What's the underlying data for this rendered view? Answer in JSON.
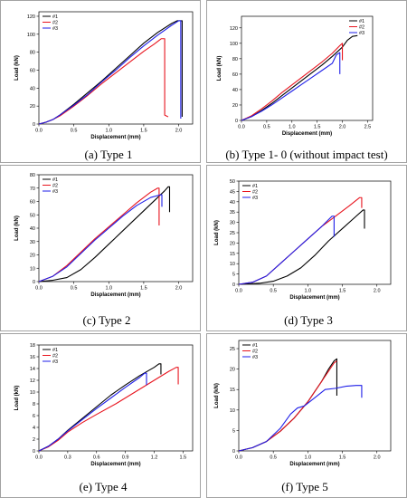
{
  "legend_labels": [
    "#1",
    "#2",
    "#3"
  ],
  "series_colors": {
    "#1": "#000000",
    "#2": "#e8141e",
    "#3": "#1e1ee8"
  },
  "chart_data": [
    {
      "type": "line",
      "caption": "(a) Type 1",
      "xlabel": "Displacement (mm)",
      "ylabel": "Load (kN)",
      "xlim": [
        0,
        2.2
      ],
      "ylim": [
        0,
        125
      ],
      "xticks": [
        0.0,
        0.5,
        1.0,
        1.5,
        2.0
      ],
      "yticks": [
        0,
        20,
        40,
        60,
        80,
        100,
        120
      ],
      "xdecimals": 1,
      "ydecimals": 0,
      "legend": "top-left",
      "series": [
        {
          "name": "#1",
          "points": [
            [
              0,
              0
            ],
            [
              0.1,
              2
            ],
            [
              0.2,
              5
            ],
            [
              0.3,
              10
            ],
            [
              0.5,
              22
            ],
            [
              0.7,
              35
            ],
            [
              0.9,
              48
            ],
            [
              1.1,
              62
            ],
            [
              1.3,
              76
            ],
            [
              1.5,
              90
            ],
            [
              1.7,
              102
            ],
            [
              1.9,
              112
            ],
            [
              1.98,
              115
            ],
            [
              2.05,
              115
            ],
            [
              2.05,
              8
            ]
          ]
        },
        {
          "name": "#2",
          "points": [
            [
              0,
              0
            ],
            [
              0.1,
              2
            ],
            [
              0.2,
              5
            ],
            [
              0.3,
              9
            ],
            [
              0.5,
              20
            ],
            [
              0.7,
              32
            ],
            [
              0.9,
              45
            ],
            [
              1.1,
              57
            ],
            [
              1.3,
              69
            ],
            [
              1.5,
              81
            ],
            [
              1.65,
              89
            ],
            [
              1.75,
              95
            ],
            [
              1.8,
              95
            ],
            [
              1.8,
              10
            ],
            [
              1.85,
              8
            ]
          ]
        },
        {
          "name": "#3",
          "points": [
            [
              0,
              0
            ],
            [
              0.1,
              2
            ],
            [
              0.2,
              5
            ],
            [
              0.3,
              10
            ],
            [
              0.5,
              21
            ],
            [
              0.7,
              33
            ],
            [
              0.9,
              47
            ],
            [
              1.1,
              60
            ],
            [
              1.3,
              74
            ],
            [
              1.5,
              87
            ],
            [
              1.7,
              99
            ],
            [
              1.9,
              110
            ],
            [
              2.0,
              115
            ],
            [
              2.03,
              115
            ],
            [
              2.03,
              6
            ]
          ]
        }
      ]
    },
    {
      "type": "line",
      "caption": "(b) Type 1- 0 (without impact test)",
      "xlabel": "Displacement (mm)",
      "ylabel": "Load (kN)",
      "xlim": [
        0,
        2.6
      ],
      "ylim": [
        0,
        135
      ],
      "xticks": [
        0.0,
        0.5,
        1.0,
        1.5,
        2.0,
        2.5
      ],
      "yticks": [
        0,
        20,
        40,
        60,
        80,
        100,
        120
      ],
      "xdecimals": 1,
      "ydecimals": 0,
      "legend": "top-right",
      "series": [
        {
          "name": "#1",
          "points": [
            [
              0,
              0
            ],
            [
              0.2,
              5
            ],
            [
              0.4,
              13
            ],
            [
              0.6,
              22
            ],
            [
              0.8,
              32
            ],
            [
              1.0,
              42
            ],
            [
              1.2,
              52
            ],
            [
              1.4,
              62
            ],
            [
              1.6,
              72
            ],
            [
              1.8,
              83
            ],
            [
              2.0,
              95
            ],
            [
              2.1,
              104
            ],
            [
              2.2,
              109
            ],
            [
              2.3,
              110
            ]
          ]
        },
        {
          "name": "#2",
          "points": [
            [
              0,
              0
            ],
            [
              0.2,
              6
            ],
            [
              0.4,
              15
            ],
            [
              0.6,
              25
            ],
            [
              0.8,
              36
            ],
            [
              1.0,
              46
            ],
            [
              1.2,
              56
            ],
            [
              1.4,
              66
            ],
            [
              1.6,
              76
            ],
            [
              1.8,
              87
            ],
            [
              1.95,
              97
            ],
            [
              2.0,
              100
            ],
            [
              2.0,
              78
            ]
          ]
        },
        {
          "name": "#3",
          "points": [
            [
              0,
              0
            ],
            [
              0.2,
              5
            ],
            [
              0.4,
              12
            ],
            [
              0.6,
              20
            ],
            [
              0.8,
              29
            ],
            [
              1.0,
              38
            ],
            [
              1.2,
              47
            ],
            [
              1.4,
              56
            ],
            [
              1.6,
              65
            ],
            [
              1.8,
              74
            ],
            [
              1.88,
              85
            ],
            [
              1.95,
              88
            ],
            [
              1.95,
              60
            ]
          ]
        }
      ]
    },
    {
      "type": "line",
      "caption": "(c) Type 2",
      "xlabel": "Displacement (mm)",
      "ylabel": "Load (kN)",
      "xlim": [
        0,
        2.2
      ],
      "ylim": [
        0,
        80
      ],
      "xticks": [
        0.0,
        0.5,
        1.0,
        1.5,
        2.0
      ],
      "yticks": [
        0,
        10,
        20,
        30,
        40,
        50,
        60,
        70,
        80
      ],
      "xdecimals": 1,
      "ydecimals": 0,
      "legend": "top-left",
      "series": [
        {
          "name": "#1",
          "points": [
            [
              0,
              0
            ],
            [
              0.2,
              1
            ],
            [
              0.4,
              3
            ],
            [
              0.6,
              9
            ],
            [
              0.8,
              18
            ],
            [
              1.0,
              28
            ],
            [
              1.2,
              38
            ],
            [
              1.4,
              48
            ],
            [
              1.6,
              58
            ],
            [
              1.8,
              68
            ],
            [
              1.85,
              71
            ],
            [
              1.87,
              71
            ],
            [
              1.87,
              52
            ]
          ]
        },
        {
          "name": "#2",
          "points": [
            [
              0,
              0
            ],
            [
              0.2,
              4
            ],
            [
              0.4,
              12
            ],
            [
              0.6,
              22
            ],
            [
              0.8,
              32
            ],
            [
              1.0,
              41
            ],
            [
              1.2,
              50
            ],
            [
              1.4,
              59
            ],
            [
              1.6,
              67
            ],
            [
              1.7,
              70
            ],
            [
              1.72,
              70
            ],
            [
              1.72,
              42
            ]
          ]
        },
        {
          "name": "#3",
          "points": [
            [
              0,
              0
            ],
            [
              0.2,
              4
            ],
            [
              0.4,
              11
            ],
            [
              0.6,
              21
            ],
            [
              0.8,
              31
            ],
            [
              1.0,
              40
            ],
            [
              1.2,
              49
            ],
            [
              1.4,
              57
            ],
            [
              1.6,
              63
            ],
            [
              1.74,
              65
            ],
            [
              1.76,
              65
            ],
            [
              1.76,
              56
            ]
          ]
        }
      ]
    },
    {
      "type": "line",
      "caption": "(d) Type 3",
      "xlabel": "Displacement (mm)",
      "ylabel": "Load (kN)",
      "xlim": [
        0,
        2.2
      ],
      "ylim": [
        0,
        50
      ],
      "xticks": [
        0.0,
        0.5,
        1.0,
        1.5,
        2.0
      ],
      "yticks": [
        0,
        5,
        10,
        15,
        20,
        25,
        30,
        35,
        40,
        45,
        50
      ],
      "xdecimals": 1,
      "ydecimals": 0,
      "legend": "top-left",
      "series": [
        {
          "name": "#1",
          "points": [
            [
              0,
              0
            ],
            [
              0.3,
              0.5
            ],
            [
              0.5,
              1.5
            ],
            [
              0.7,
              4
            ],
            [
              0.9,
              8
            ],
            [
              1.1,
              14
            ],
            [
              1.3,
              21
            ],
            [
              1.5,
              27
            ],
            [
              1.7,
              33
            ],
            [
              1.8,
              36
            ],
            [
              1.82,
              36
            ],
            [
              1.82,
              27
            ]
          ]
        },
        {
          "name": "#2",
          "points": [
            [
              0,
              0
            ],
            [
              0.2,
              1
            ],
            [
              0.4,
              4
            ],
            [
              0.6,
              10
            ],
            [
              0.8,
              16
            ],
            [
              1.0,
              22
            ],
            [
              1.2,
              28
            ],
            [
              1.4,
              33
            ],
            [
              1.6,
              38
            ],
            [
              1.75,
              42
            ],
            [
              1.78,
              42
            ],
            [
              1.78,
              37
            ]
          ]
        },
        {
          "name": "#3",
          "points": [
            [
              0,
              0
            ],
            [
              0.2,
              1
            ],
            [
              0.4,
              4
            ],
            [
              0.6,
              10
            ],
            [
              0.8,
              16
            ],
            [
              1.0,
              22
            ],
            [
              1.2,
              28
            ],
            [
              1.35,
              33
            ],
            [
              1.38,
              33
            ],
            [
              1.38,
              23
            ]
          ]
        }
      ]
    },
    {
      "type": "line",
      "caption": "(e) Type 4",
      "xlabel": "Displacement (mm)",
      "ylabel": "Load (kN)",
      "xlim": [
        0,
        1.6
      ],
      "ylim": [
        0,
        18
      ],
      "xticks": [
        0.0,
        0.3,
        0.6,
        0.9,
        1.2,
        1.5
      ],
      "yticks": [
        0,
        2,
        4,
        6,
        8,
        10,
        12,
        14,
        16,
        18
      ],
      "xdecimals": 1,
      "ydecimals": 0,
      "legend": "top-left",
      "series": [
        {
          "name": "#1",
          "points": [
            [
              0,
              0
            ],
            [
              0.1,
              0.8
            ],
            [
              0.2,
              2
            ],
            [
              0.3,
              3.5
            ],
            [
              0.45,
              5.5
            ],
            [
              0.6,
              7.5
            ],
            [
              0.75,
              9.5
            ],
            [
              0.9,
              11.2
            ],
            [
              1.05,
              12.8
            ],
            [
              1.2,
              14.2
            ],
            [
              1.25,
              14.8
            ],
            [
              1.27,
              14.8
            ],
            [
              1.27,
              13
            ]
          ]
        },
        {
          "name": "#2",
          "points": [
            [
              0,
              0
            ],
            [
              0.1,
              0.7
            ],
            [
              0.2,
              1.8
            ],
            [
              0.3,
              3.2
            ],
            [
              0.45,
              4.8
            ],
            [
              0.6,
              6.2
            ],
            [
              0.8,
              8
            ],
            [
              1.0,
              10
            ],
            [
              1.2,
              12
            ],
            [
              1.35,
              13.5
            ],
            [
              1.43,
              14.2
            ],
            [
              1.45,
              14.2
            ],
            [
              1.45,
              11.3
            ]
          ]
        },
        {
          "name": "#3",
          "points": [
            [
              0,
              0
            ],
            [
              0.1,
              0.8
            ],
            [
              0.2,
              2
            ],
            [
              0.3,
              3.4
            ],
            [
              0.45,
              5.3
            ],
            [
              0.6,
              7.2
            ],
            [
              0.75,
              9
            ],
            [
              0.9,
              10.8
            ],
            [
              1.05,
              12.5
            ],
            [
              1.1,
              13.2
            ],
            [
              1.12,
              13.2
            ],
            [
              1.12,
              11.2
            ]
          ]
        }
      ]
    },
    {
      "type": "line",
      "caption": "(f) Type 5",
      "xlabel": "Displacement (mm)",
      "ylabel": "Load (kN)",
      "xlim": [
        0,
        2.2
      ],
      "ylim": [
        0,
        27
      ],
      "xticks": [
        0.0,
        0.5,
        1.0,
        1.5,
        2.0
      ],
      "yticks": [
        0,
        5,
        10,
        15,
        20,
        25
      ],
      "xdecimals": 1,
      "ydecimals": 0,
      "legend": "top-left",
      "series": [
        {
          "name": "#1",
          "points": [
            [
              0,
              0
            ],
            [
              0.2,
              0.8
            ],
            [
              0.4,
              2.3
            ],
            [
              0.6,
              4.8
            ],
            [
              0.8,
              8
            ],
            [
              1.0,
              12
            ],
            [
              1.1,
              14.5
            ],
            [
              1.2,
              17
            ],
            [
              1.3,
              20
            ],
            [
              1.38,
              22
            ],
            [
              1.42,
              22.5
            ],
            [
              1.42,
              13.5
            ]
          ]
        },
        {
          "name": "#2",
          "points": [
            [
              0,
              0
            ],
            [
              0.2,
              0.8
            ],
            [
              0.4,
              2.3
            ],
            [
              0.6,
              4.8
            ],
            [
              0.8,
              8
            ],
            [
              1.0,
              12
            ],
            [
              1.1,
              14.5
            ],
            [
              1.2,
              17
            ],
            [
              1.3,
              19.5
            ],
            [
              1.38,
              21.5
            ],
            [
              1.42,
              22
            ]
          ]
        },
        {
          "name": "#3",
          "points": [
            [
              0,
              0
            ],
            [
              0.2,
              0.8
            ],
            [
              0.4,
              2.3
            ],
            [
              0.6,
              5.5
            ],
            [
              0.75,
              9
            ],
            [
              0.85,
              10.5
            ],
            [
              0.95,
              11
            ],
            [
              1.1,
              13
            ],
            [
              1.25,
              15
            ],
            [
              1.4,
              15.3
            ],
            [
              1.55,
              15.8
            ],
            [
              1.7,
              16
            ],
            [
              1.78,
              16
            ],
            [
              1.78,
              13
            ]
          ]
        }
      ]
    }
  ]
}
